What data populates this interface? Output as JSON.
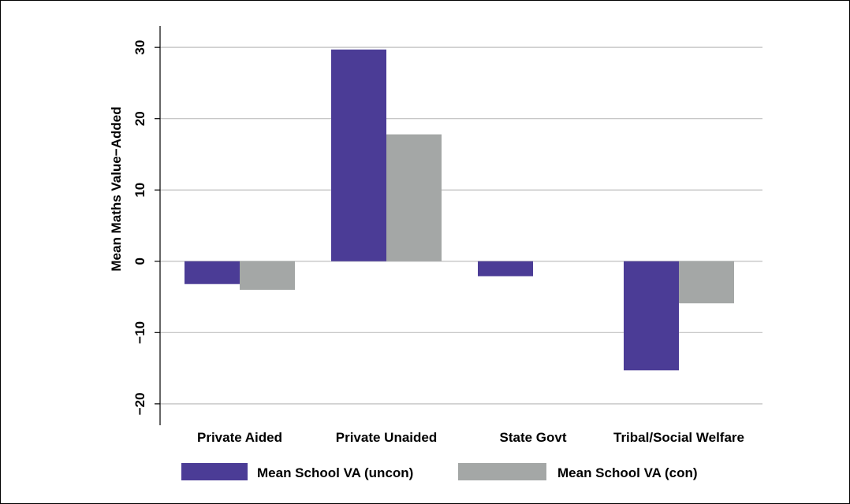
{
  "chart_data": {
    "type": "bar",
    "title": "",
    "xlabel": "",
    "ylabel": "Mean Maths Value−Added",
    "categories": [
      "Private Aided",
      "Private Unaided",
      "State Govt",
      "Tribal/Social Welfare"
    ],
    "series": [
      {
        "name": "Mean School VA (uncon)",
        "color": "#4b3c96",
        "values": [
          -3.2,
          29.7,
          -2.1,
          -15.3
        ]
      },
      {
        "name": "Mean School VA (con)",
        "color": "#a4a7a6",
        "values": [
          -4.0,
          17.8,
          0,
          -5.9
        ]
      }
    ],
    "ylim": [
      -23,
      33
    ],
    "yticks": [
      -20,
      -10,
      0,
      10,
      20,
      30
    ],
    "ytick_labels": [
      "−20",
      "−10",
      "0",
      "10",
      "20",
      "30"
    ],
    "grid": true,
    "legend_position": "bottom"
  }
}
